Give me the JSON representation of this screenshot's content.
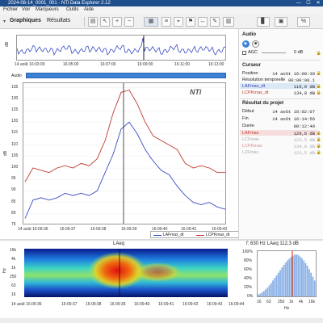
{
  "window": {
    "title": "2024-08-14_0001_001 - NTi Data Explorer 2.12",
    "min": "—",
    "max": "☐",
    "close": "✕"
  },
  "menu": [
    "Fichier",
    "Voir",
    "Marqueurs",
    "Outils",
    "Aide"
  ],
  "toolbar": {
    "tabs": [
      "Graphiques",
      "Résultats"
    ]
  },
  "overview": {
    "ylabel": "dB",
    "xticks": [
      "14 août 16:03:00",
      "16:05:00",
      "16:07:00",
      "16:09:00",
      "16:11:00",
      "16:13:00"
    ],
    "audio_label": "Audio"
  },
  "main_chart": {
    "ylabel": "dB",
    "watermark": "NTi",
    "yticks": [
      "135",
      "130",
      "125",
      "120",
      "115",
      "110",
      "105",
      "100",
      "95",
      "90",
      "85",
      "80",
      "75"
    ],
    "xticks": [
      "14 août 16:09:36",
      "16:09:37",
      "16:09:38",
      "16:09:39",
      "16:09:40",
      "16:09:41",
      "16:09:42"
    ],
    "legend": [
      "LAFmax_dt",
      "LCPKmax_dt"
    ],
    "colors": {
      "laf": "#3a4bc1",
      "lcpk": "#c0392b"
    }
  },
  "chart_data": {
    "type": "line",
    "ylim": [
      75,
      137
    ],
    "x": [
      "16:09:36.0",
      "16:09:36.3",
      "16:09:36.6",
      "16:09:36.9",
      "16:09:37.2",
      "16:09:37.5",
      "16:09:37.8",
      "16:09:38.1",
      "16:09:38.4",
      "16:09:38.7",
      "16:09:38.9",
      "16:09:39.1",
      "16:09:39.3",
      "16:09:39.5",
      "16:09:39.7",
      "16:09:39.9",
      "16:09:40.2",
      "16:09:40.5",
      "16:09:40.8",
      "16:09:41.1",
      "16:09:41.4",
      "16:09:41.7",
      "16:09:42.0",
      "16:09:42.3",
      "16:09:42.6",
      "16:09:42.9"
    ],
    "series": [
      {
        "name": "LAFmax_dt",
        "values": [
          78,
          86,
          87,
          86,
          87,
          89,
          88,
          89,
          88,
          90,
          98,
          106,
          117,
          120,
          115,
          108,
          103,
          99,
          97,
          92,
          88,
          85,
          84,
          85,
          83,
          82
        ]
      },
      {
        "name": "LCPKmax_dt",
        "values": [
          94,
          100,
          99,
          98,
          100,
          101,
          100,
          102,
          101,
          104,
          112,
          124,
          133,
          134,
          128,
          120,
          114,
          112,
          110,
          108,
          102,
          100,
          101,
          100,
          98,
          98
        ]
      }
    ]
  },
  "spectrogram": {
    "title": "LAeq",
    "ylabel": "Hz",
    "yticks": [
      "16k",
      "4k",
      "1k",
      "250",
      "63",
      "16"
    ],
    "xticks": [
      "14 août 16:09:36",
      "16:09:37",
      "16:09:38",
      "16:09:39",
      "16:09:40",
      "16:09:41",
      "16:09:42",
      "16:09:43",
      "16:09:44"
    ]
  },
  "spectrum": {
    "title": "f: 630 Hz LAeq  112,3 dB",
    "xlabel": "Hz",
    "xticks": [
      "16",
      "63",
      "250",
      "1k",
      "4k",
      "16k"
    ],
    "yticks": [
      "100%",
      "80%",
      "60%",
      "40%",
      "20%",
      "0%"
    ],
    "bars": [
      8,
      10,
      13,
      16,
      20,
      24,
      29,
      34,
      40,
      46,
      52,
      58,
      64,
      70,
      76,
      81,
      86,
      90,
      94,
      97,
      99,
      100,
      98,
      95,
      91,
      86,
      80,
      74,
      66,
      58,
      49,
      40,
      30
    ]
  },
  "rpanel": {
    "audio": {
      "title": "Audio",
      "agc": "AGC",
      "db": "0 dB"
    },
    "cursor": {
      "title": "Curseur",
      "rows": [
        {
          "label": "Position",
          "value": "14 août 16:09:39"
        },
        {
          "label": "Résolution temporelle",
          "value": "00:00:00.1"
        },
        {
          "label": "LAFmax_dt",
          "value": "119,9 dB"
        },
        {
          "label": "LCPKmax_dt",
          "value": "134,8 dB"
        }
      ]
    },
    "results": {
      "title": "Résultat du projet",
      "rows": [
        {
          "label": "Début",
          "value": "14 août 16:02:07"
        },
        {
          "label": "Fin",
          "value": "14 août 16:14:56"
        },
        {
          "label": "Durée",
          "value": "00:12:49"
        },
        {
          "label": "LAFmax",
          "value": "120,6 dB"
        },
        {
          "label": "LCFmax",
          "value": "123,5 dB"
        },
        {
          "label": "LCPKmax",
          "value": "134,8 dB"
        },
        {
          "label": "LZFmax",
          "value": "123,5 dB"
        }
      ]
    }
  }
}
